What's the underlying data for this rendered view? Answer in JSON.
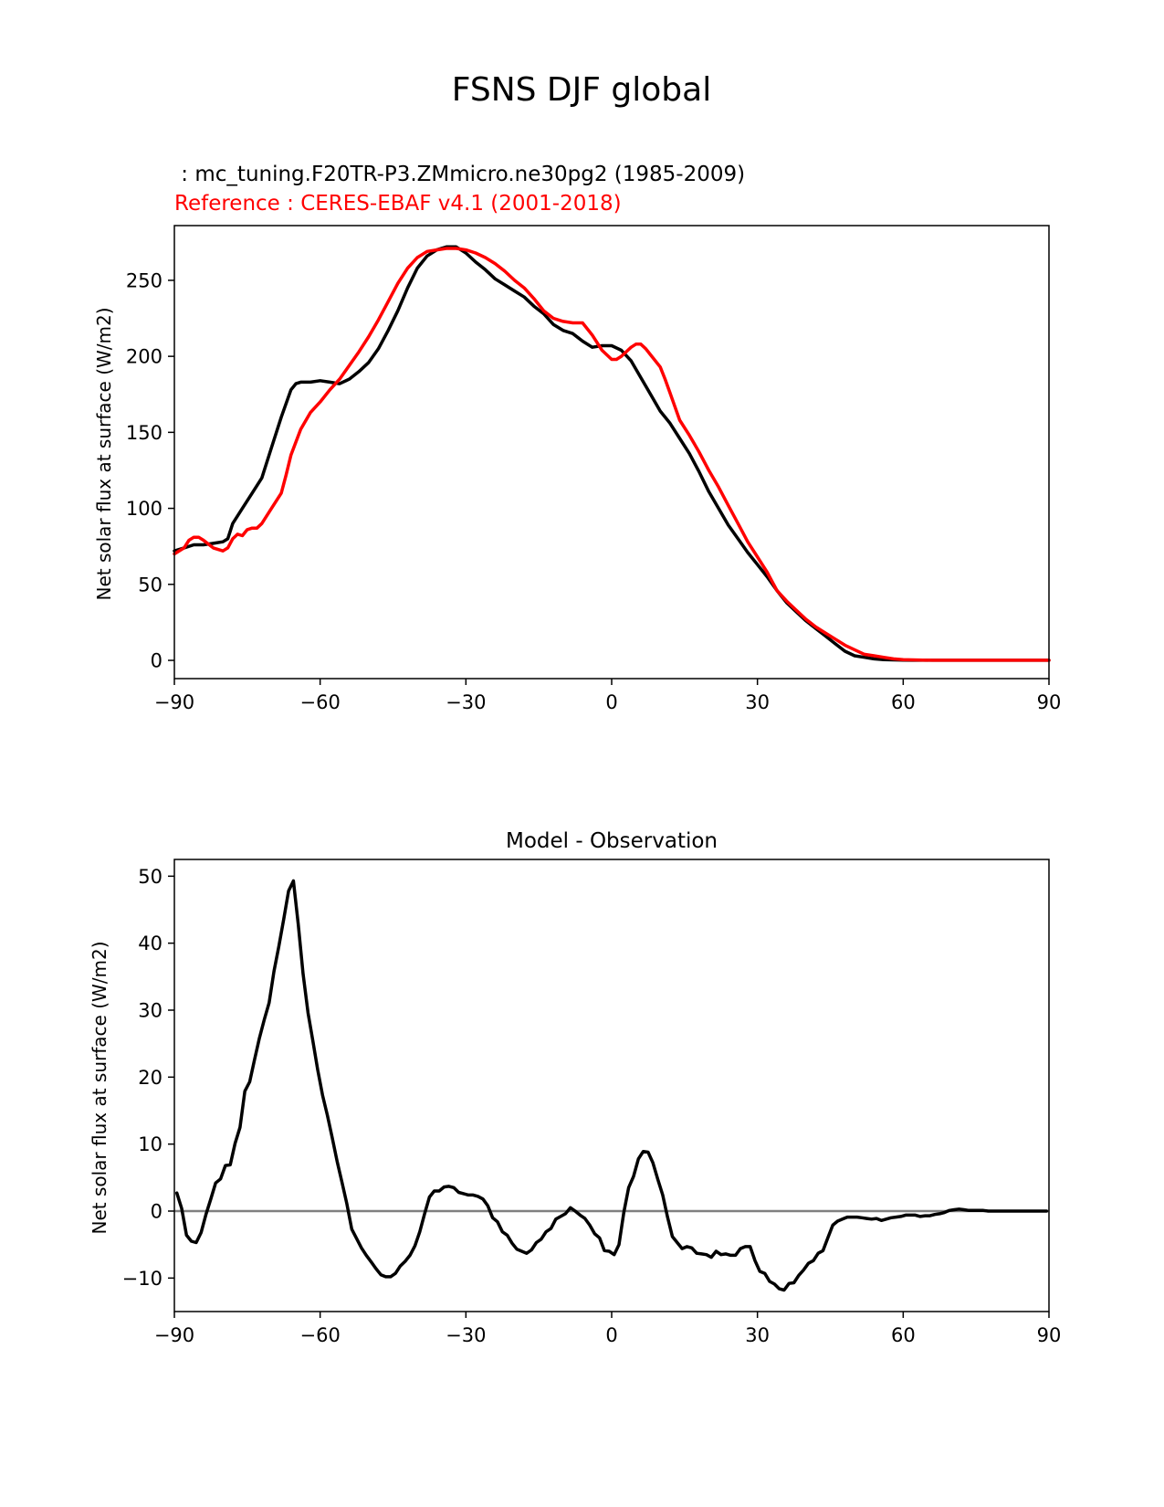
{
  "figure": {
    "suptitle": "FSNS DJF global"
  },
  "chart_data": [
    {
      "type": "line",
      "test_label": " : mc_tuning.F20TR-P3.ZMmicro.ne30pg2 (1985-2009)",
      "ref_label": "Reference : CERES-EBAF v4.1 (2001-2018)",
      "ylabel": "Net solar flux at surface (W/m2)",
      "xlabel": "",
      "xlim": [
        -90,
        90
      ],
      "ylim": [
        -12,
        286
      ],
      "xticks": [
        -90,
        -60,
        -30,
        0,
        30,
        60,
        90
      ],
      "xtick_labels": [
        "−90",
        "−60",
        "−30",
        "0",
        "30",
        "60",
        "90"
      ],
      "yticks": [
        0,
        50,
        100,
        150,
        200,
        250
      ],
      "yticks_labels": [
        "0",
        "50",
        "100",
        "150",
        "200",
        "250"
      ],
      "colors": {
        "test": "#000000",
        "ref": "#ff0000",
        "test_label_color": "#000000",
        "ref_label_color": "#ff0000"
      },
      "series": [
        {
          "role": "test",
          "x": [
            -90,
            -88,
            -86,
            -84,
            -82,
            -80,
            -79,
            -78,
            -76,
            -74,
            -72,
            -70,
            -68,
            -66,
            -65,
            -64,
            -62,
            -60,
            -58,
            -56,
            -54,
            -52,
            -50,
            -48,
            -46,
            -44,
            -42,
            -40,
            -38,
            -36,
            -34,
            -32,
            -30,
            -28,
            -26,
            -24,
            -22,
            -20,
            -18,
            -16,
            -14,
            -12,
            -10,
            -8,
            -6,
            -4,
            -2,
            0,
            2,
            4,
            6,
            8,
            10,
            12,
            14,
            16,
            18,
            20,
            22,
            24,
            26,
            28,
            30,
            32,
            34,
            36,
            38,
            40,
            42,
            44,
            46,
            48,
            50,
            52,
            54,
            56,
            58,
            60,
            62,
            64,
            66,
            68,
            70,
            72,
            74,
            76,
            78,
            80,
            85,
            90
          ],
          "y": [
            72,
            74,
            76,
            76,
            77,
            78,
            80,
            90,
            100,
            110,
            120,
            140,
            160,
            178,
            182,
            183,
            183,
            184,
            183,
            182,
            185,
            190,
            196,
            205,
            217,
            230,
            245,
            258,
            266,
            270,
            272,
            272,
            268,
            262,
            257,
            251,
            247,
            243,
            239,
            233,
            228,
            221,
            217,
            215,
            210,
            206,
            207,
            207,
            204,
            197,
            186,
            175,
            164,
            156,
            146,
            136,
            124,
            111,
            100,
            89,
            80,
            71,
            63,
            55,
            46,
            38,
            32,
            26,
            21,
            16,
            11,
            6,
            3,
            2,
            1,
            0.5,
            0.3,
            0.2,
            0.1,
            0.1,
            0.1,
            0.1,
            0.1,
            0.1,
            0.1,
            0.1,
            0.1,
            0.1,
            0.1,
            0.1
          ]
        },
        {
          "role": "ref",
          "x": [
            -90,
            -88,
            -87,
            -86,
            -85,
            -84,
            -82,
            -80,
            -79,
            -78,
            -77,
            -76,
            -75,
            -74,
            -73,
            -72,
            -70,
            -68,
            -67,
            -66,
            -64,
            -62,
            -60,
            -58,
            -56,
            -54,
            -52,
            -50,
            -48,
            -46,
            -44,
            -42,
            -40,
            -38,
            -36,
            -34,
            -32,
            -30,
            -28,
            -26,
            -24,
            -22,
            -20,
            -18,
            -16,
            -14,
            -12,
            -10,
            -8,
            -6,
            -4,
            -2,
            0,
            1,
            2,
            3,
            4,
            5,
            6,
            7,
            8,
            10,
            11,
            12,
            13,
            14,
            16,
            18,
            20,
            22,
            24,
            26,
            28,
            30,
            32,
            34,
            36,
            38,
            40,
            42,
            44,
            46,
            48,
            50,
            52,
            54,
            56,
            58,
            60,
            62,
            64,
            66,
            68,
            70,
            72,
            74,
            76,
            78,
            80,
            85,
            90
          ],
          "y": [
            70,
            74,
            79,
            81,
            81,
            79,
            74,
            72,
            74,
            80,
            83,
            82,
            86,
            87,
            87,
            90,
            100,
            110,
            122,
            135,
            152,
            163,
            170,
            178,
            185,
            194,
            203,
            213,
            224,
            236,
            248,
            258,
            265,
            269,
            270,
            271,
            271,
            270,
            268,
            265,
            261,
            256,
            250,
            245,
            238,
            230,
            225,
            223,
            222,
            222,
            214,
            204,
            198,
            198,
            200,
            203,
            206,
            208,
            208,
            205,
            201,
            193,
            185,
            176,
            167,
            158,
            148,
            137,
            125,
            114,
            102,
            90,
            78,
            68,
            58,
            46,
            39,
            33,
            27,
            22,
            18,
            14,
            10,
            7,
            4,
            3,
            2,
            1,
            0.5,
            0.3,
            0.2,
            0.1,
            0.1,
            0.1,
            0.1,
            0.1,
            0.1,
            0.1,
            0.1,
            0.1,
            0.1
          ]
        }
      ]
    },
    {
      "type": "line",
      "title": "Model - Observation",
      "ylabel": "Net solar flux at surface (W/m2)",
      "xlabel": "",
      "xlim": [
        -90,
        90
      ],
      "ylim": [
        -15,
        52.5
      ],
      "xticks": [
        -90,
        -60,
        -30,
        0,
        30,
        60,
        90
      ],
      "xtick_labels": [
        "−90",
        "−60",
        "−30",
        "0",
        "30",
        "60",
        "90"
      ],
      "yticks": [
        -10,
        0,
        10,
        20,
        30,
        40,
        50
      ],
      "yticks_labels": [
        "−10",
        "0",
        "10",
        "20",
        "30",
        "40",
        "50"
      ],
      "colors": {
        "diff": "#000000",
        "zero_line": "#808080"
      },
      "zero_line": 0,
      "series": [
        {
          "role": "diff",
          "x": [
            -89.5,
            -88.5,
            -87.5,
            -86.5,
            -85.5,
            -84.5,
            -83.5,
            -82.5,
            -81.5,
            -80.5,
            -79.5,
            -78.5,
            -77.5,
            -76.5,
            -75.5,
            -74.5,
            -73.5,
            -72.5,
            -71.5,
            -70.5,
            -69.5,
            -68.5,
            -67.5,
            -66.5,
            -65.5,
            -64.5,
            -63.5,
            -62.5,
            -61.5,
            -60.5,
            -59.5,
            -58.5,
            -57.5,
            -56.5,
            -55.5,
            -54.5,
            -53.5,
            -52.5,
            -51.5,
            -50.5,
            -49.5,
            -48.5,
            -47.5,
            -46.5,
            -45.5,
            -44.5,
            -43.5,
            -42.5,
            -41.5,
            -40.5,
            -39.5,
            -38.5,
            -37.5,
            -36.5,
            -35.5,
            -34.5,
            -33.5,
            -32.5,
            -31.5,
            -30.5,
            -29.5,
            -28.5,
            -27.5,
            -26.5,
            -25.5,
            -24.5,
            -23.5,
            -22.5,
            -21.5,
            -20.5,
            -19.5,
            -18.5,
            -17.5,
            -16.5,
            -15.5,
            -14.5,
            -13.5,
            -12.5,
            -11.5,
            -10.5,
            -9.5,
            -8.5,
            -7.5,
            -6.5,
            -5.5,
            -4.5,
            -3.5,
            -2.5,
            -1.5,
            -0.5,
            0.5,
            1.5,
            2.5,
            3.5,
            4.5,
            5.5,
            6.5,
            7.5,
            8.5,
            9.5,
            10.5,
            11.5,
            12.5,
            13.5,
            14.5,
            15.5,
            16.5,
            17.5,
            18.5,
            19.5,
            20.5,
            21.5,
            22.5,
            23.5,
            24.5,
            25.5,
            26.5,
            27.5,
            28.5,
            29.5,
            30.5,
            31.5,
            32.5,
            33.5,
            34.5,
            35.5,
            36.5,
            37.5,
            38.5,
            39.5,
            40.5,
            41.5,
            42.5,
            43.5,
            44.5,
            45.5,
            46.5,
            47.5,
            48.5,
            49.5,
            50.5,
            51.5,
            52.5,
            53.5,
            54.5,
            55.5,
            56.5,
            57.5,
            58.5,
            59.5,
            60.5,
            61.5,
            62.5,
            63.5,
            64.5,
            65.5,
            66.5,
            67.5,
            68.5,
            69.5,
            70.5,
            71.5,
            72.5,
            73.5,
            74.5,
            75.5,
            76.5,
            77.5,
            78.5,
            79.5,
            80.5,
            81.5,
            82.5,
            83.5,
            84.5,
            85.5,
            86.5,
            87.5,
            88.5,
            89.5
          ],
          "y": [
            2.7,
            0.4,
            -3.6,
            -4.5,
            -4.7,
            -3.2,
            -0.5,
            1.8,
            4.2,
            4.8,
            6.8,
            6.9,
            10.1,
            12.5,
            17.9,
            19.3,
            22.6,
            25.8,
            28.6,
            31.1,
            35.8,
            39.5,
            43.6,
            47.8,
            49.3,
            42.8,
            35.4,
            29.6,
            25.4,
            21.1,
            17.3,
            14.3,
            10.9,
            7.4,
            4.3,
            1.1,
            -2.7,
            -4.1,
            -5.5,
            -6.6,
            -7.6,
            -8.6,
            -9.5,
            -9.8,
            -9.8,
            -9.3,
            -8.2,
            -7.5,
            -6.6,
            -5.2,
            -3.1,
            -0.4,
            2.1,
            3,
            3,
            3.6,
            3.7,
            3.5,
            2.8,
            2.6,
            2.4,
            2.4,
            2.2,
            1.8,
            0.8,
            -1,
            -1.6,
            -3.1,
            -3.6,
            -4.8,
            -5.7,
            -6,
            -6.3,
            -5.8,
            -4.7,
            -4.2,
            -3.1,
            -2.6,
            -1.2,
            -0.8,
            -0.4,
            0.5,
            0,
            -0.6,
            -1.1,
            -2.1,
            -3.4,
            -4,
            -5.9,
            -6,
            -6.5,
            -5,
            -0.2,
            3.5,
            5.2,
            7.8,
            8.9,
            8.8,
            7.2,
            4.7,
            2.4,
            -0.9,
            -3.8,
            -4.7,
            -5.6,
            -5.3,
            -5.5,
            -6.3,
            -6.4,
            -6.5,
            -6.9,
            -6,
            -6.5,
            -6.4,
            -6.6,
            -6.6,
            -5.6,
            -5.3,
            -5.3,
            -7.4,
            -9,
            -9.3,
            -10.5,
            -10.9,
            -11.6,
            -11.8,
            -10.8,
            -10.7,
            -9.6,
            -8.8,
            -7.8,
            -7.4,
            -6.3,
            -5.9,
            -4,
            -2.1,
            -1.5,
            -1.2,
            -0.9,
            -0.9,
            -0.9,
            -1,
            -1.1,
            -1.2,
            -1.1,
            -1.4,
            -1.2,
            -1,
            -0.9,
            -0.8,
            -0.6,
            -0.6,
            -0.6,
            -0.8,
            -0.7,
            -0.7,
            -0.5,
            -0.4,
            -0.2,
            0.1,
            0.2,
            0.3,
            0.2,
            0.1,
            0.1,
            0.1,
            0.1,
            0,
            0,
            0,
            0,
            0,
            0,
            0,
            0,
            0,
            0,
            0,
            0,
            0
          ]
        }
      ]
    }
  ]
}
